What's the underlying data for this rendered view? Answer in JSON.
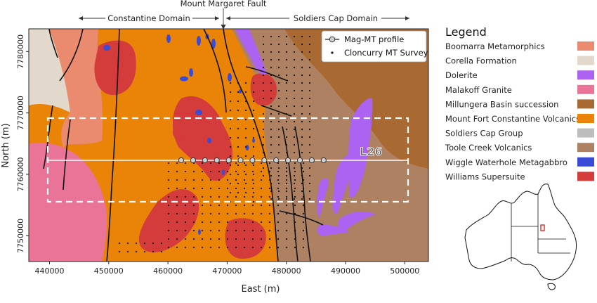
{
  "map": {
    "fault_label": "Mount Margaret Fault",
    "domains": [
      {
        "name": "Constantine Domain"
      },
      {
        "name": "Soldiers Cap Domain"
      }
    ],
    "profile_label": "L26",
    "xlabel": "East (m)",
    "ylabel": "North (m)",
    "xticks": [
      "440000",
      "450000",
      "460000",
      "470000",
      "480000",
      "490000",
      "500000"
    ],
    "yticks": [
      "7750000",
      "7760000",
      "7770000",
      "7780000"
    ],
    "xlim": [
      436500,
      504000
    ],
    "ylim": [
      7745800,
      7783700
    ]
  },
  "inset_legend": {
    "profile_entry": "Mag-MT profile",
    "survey_entry": "Cloncurry MT Survey"
  },
  "legend": {
    "title": "Legend",
    "items": [
      {
        "label": "Boomarra Metamorphics",
        "color": "#ea8a6e"
      },
      {
        "label": "Corella Formation",
        "color": "#e2d8cc"
      },
      {
        "label": "Dolerite",
        "color": "#ad63f2"
      },
      {
        "label": "Malakoff Granite",
        "color": "#ea7498"
      },
      {
        "label": "Millungera Basin succession",
        "color": "#a86a32"
      },
      {
        "label": "Mount Fort Constantine Volcanics",
        "color": "#ea8409"
      },
      {
        "label": "Soldiers Cap Group",
        "color": "#bdbdbd"
      },
      {
        "label": "Toole Creek Volcanics",
        "color": "#ad8162"
      },
      {
        "label": "Wiggle Waterhole Metagabbro",
        "color": "#3a4bd6"
      },
      {
        "label": "Williams Supersuite",
        "color": "#d43b3b"
      }
    ]
  }
}
